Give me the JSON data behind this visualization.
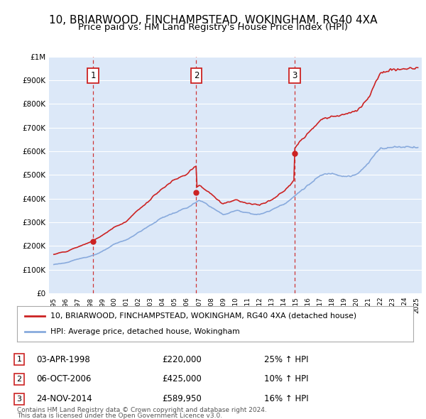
{
  "title": "10, BRIARWOOD, FINCHAMPSTEAD, WOKINGHAM, RG40 4XA",
  "subtitle": "Price paid vs. HM Land Registry's House Price Index (HPI)",
  "legend_line1": "10, BRIARWOOD, FINCHAMPSTEAD, WOKINGHAM, RG40 4XA (detached house)",
  "legend_line2": "HPI: Average price, detached house, Wokingham",
  "footnote1": "Contains HM Land Registry data © Crown copyright and database right 2024.",
  "footnote2": "This data is licensed under the Open Government Licence v3.0.",
  "transactions": [
    {
      "num": 1,
      "date": "03-APR-1998",
      "price": 220000,
      "year": 1998.25,
      "hpi_pct": "25% ↑ HPI"
    },
    {
      "num": 2,
      "date": "06-OCT-2006",
      "price": 425000,
      "year": 2006.77,
      "hpi_pct": "10% ↑ HPI"
    },
    {
      "num": 3,
      "date": "24-NOV-2014",
      "price": 589950,
      "year": 2014.9,
      "hpi_pct": "16% ↑ HPI"
    }
  ],
  "ylim": [
    0,
    1000000
  ],
  "xlim_start": 1994.6,
  "xlim_end": 2025.4,
  "bg_color": "#ffffff",
  "plot_bg_color": "#dce8f8",
  "grid_color": "#ffffff",
  "red_line_color": "#cc2222",
  "blue_line_color": "#88aadd",
  "dashed_line_color": "#cc2222",
  "marker_color": "#cc2222",
  "box_color": "#cc2222",
  "title_fontsize": 11,
  "subtitle_fontsize": 10
}
